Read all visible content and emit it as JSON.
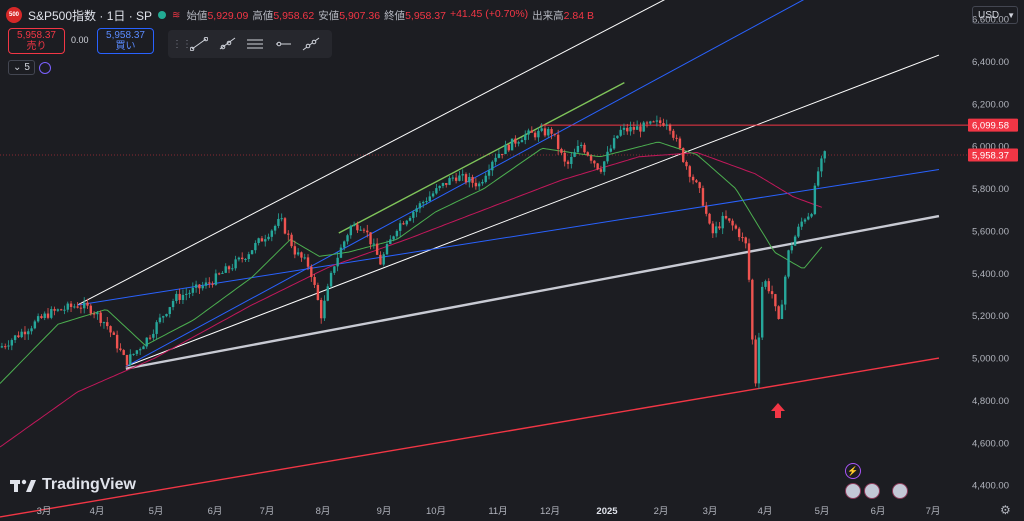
{
  "header": {
    "symbol_badge": "500",
    "title": "S&P500指数 · 1日 · SP",
    "ohlc": [
      {
        "label": "始値",
        "value": "5,929.09"
      },
      {
        "label": "高値",
        "value": "5,958.62"
      },
      {
        "label": "安値",
        "value": "5,907.36"
      },
      {
        "label": "終値",
        "value": "5,958.37"
      },
      {
        "label": "",
        "value": "+41.45 (+0.70%)"
      },
      {
        "label": "出来高",
        "value": "2.84 B"
      }
    ]
  },
  "trade": {
    "sell_price": "5,958.37",
    "sell_label": "売り",
    "spread": "0.00",
    "buy_price": "5,958.37",
    "buy_label": "買い"
  },
  "indicator": {
    "label": "5"
  },
  "currency": "USD",
  "drawing_tools": [
    "trend-line-tool",
    "ray-tool",
    "parallel-channel-tool",
    "horizontal-ray-tool",
    "extended-line-tool"
  ],
  "logo_text": "TradingView",
  "colors": {
    "up": "#26a69a",
    "down": "#ef5350",
    "resistance": "#f23645",
    "channel": "#ffffff",
    "blue_line": "#2962ff",
    "green_line": "#7fc45a",
    "ma_short": "#4caf50",
    "ma_long": "#c2185b"
  },
  "chart_data": {
    "type": "candlestick",
    "title": "S&P500指数 · 1日 · SP",
    "y_axis_ticks": [
      "6,600.00",
      "6,400.00",
      "6,200.00",
      "6,000.00",
      "5,800.00",
      "5,600.00",
      "5,400.00",
      "5,200.00",
      "5,000.00",
      "4,800.00",
      "4,600.00",
      "4,400.00"
    ],
    "x_axis_ticks": [
      "3月",
      "4月",
      "5月",
      "6月",
      "7月",
      "8月",
      "9月",
      "10月",
      "11月",
      "12月",
      "2025",
      "2月",
      "3月",
      "4月",
      "5月",
      "6月",
      "7月"
    ],
    "ylim": [
      4330,
      6690
    ],
    "price_labels": [
      {
        "value": 6099.58,
        "text": "6,099.58"
      },
      {
        "value": 5958.37,
        "text": "5,958.37"
      }
    ],
    "series": [
      {
        "name": "price",
        "anchors": [
          {
            "t": 0,
            "v": 5050
          },
          {
            "t": 50,
            "v": 5210
          },
          {
            "t": 80,
            "v": 5250
          },
          {
            "t": 95,
            "v": 5230
          },
          {
            "t": 110,
            "v": 5160
          },
          {
            "t": 130,
            "v": 4980
          },
          {
            "t": 150,
            "v": 5080
          },
          {
            "t": 180,
            "v": 5280
          },
          {
            "t": 215,
            "v": 5350
          },
          {
            "t": 250,
            "v": 5470
          },
          {
            "t": 290,
            "v": 5650
          },
          {
            "t": 305,
            "v": 5500
          },
          {
            "t": 320,
            "v": 5430
          },
          {
            "t": 332,
            "v": 5200
          },
          {
            "t": 345,
            "v": 5440
          },
          {
            "t": 362,
            "v": 5620
          },
          {
            "t": 375,
            "v": 5630
          },
          {
            "t": 393,
            "v": 5450
          },
          {
            "t": 410,
            "v": 5620
          },
          {
            "t": 440,
            "v": 5750
          },
          {
            "t": 470,
            "v": 5860
          },
          {
            "t": 495,
            "v": 5820
          },
          {
            "t": 510,
            "v": 5950
          },
          {
            "t": 540,
            "v": 6050
          },
          {
            "t": 570,
            "v": 6070
          },
          {
            "t": 585,
            "v": 5900
          },
          {
            "t": 600,
            "v": 6010
          },
          {
            "t": 620,
            "v": 5890
          },
          {
            "t": 640,
            "v": 6070
          },
          {
            "t": 665,
            "v": 6090
          },
          {
            "t": 690,
            "v": 6120
          },
          {
            "t": 705,
            "v": 5950
          },
          {
            "t": 725,
            "v": 5760
          },
          {
            "t": 735,
            "v": 5580
          },
          {
            "t": 748,
            "v": 5660
          },
          {
            "t": 762,
            "v": 5600
          },
          {
            "t": 772,
            "v": 5520
          },
          {
            "t": 780,
            "v": 4850
          },
          {
            "t": 788,
            "v": 5380
          },
          {
            "t": 798,
            "v": 5300
          },
          {
            "t": 804,
            "v": 5150
          },
          {
            "t": 815,
            "v": 5510
          },
          {
            "t": 830,
            "v": 5660
          },
          {
            "t": 838,
            "v": 5690
          },
          {
            "t": 845,
            "v": 5880
          },
          {
            "t": 852,
            "v": 5958
          }
        ]
      },
      {
        "name": "MA-short",
        "anchors": [
          {
            "t": 0,
            "v": 4880
          },
          {
            "t": 60,
            "v": 5160
          },
          {
            "t": 110,
            "v": 5230
          },
          {
            "t": 150,
            "v": 5060
          },
          {
            "t": 200,
            "v": 5180
          },
          {
            "t": 260,
            "v": 5380
          },
          {
            "t": 300,
            "v": 5560
          },
          {
            "t": 330,
            "v": 5480
          },
          {
            "t": 360,
            "v": 5500
          },
          {
            "t": 410,
            "v": 5560
          },
          {
            "t": 450,
            "v": 5690
          },
          {
            "t": 500,
            "v": 5800
          },
          {
            "t": 560,
            "v": 5990
          },
          {
            "t": 620,
            "v": 5950
          },
          {
            "t": 680,
            "v": 6020
          },
          {
            "t": 720,
            "v": 5960
          },
          {
            "t": 760,
            "v": 5800
          },
          {
            "t": 800,
            "v": 5500
          },
          {
            "t": 830,
            "v": 5420
          },
          {
            "t": 850,
            "v": 5530
          }
        ]
      },
      {
        "name": "MA-long",
        "anchors": [
          {
            "t": 0,
            "v": 4580
          },
          {
            "t": 80,
            "v": 4840
          },
          {
            "t": 160,
            "v": 5000
          },
          {
            "t": 260,
            "v": 5250
          },
          {
            "t": 340,
            "v": 5430
          },
          {
            "t": 420,
            "v": 5560
          },
          {
            "t": 500,
            "v": 5700
          },
          {
            "t": 580,
            "v": 5840
          },
          {
            "t": 660,
            "v": 5950
          },
          {
            "t": 720,
            "v": 5970
          },
          {
            "t": 780,
            "v": 5870
          },
          {
            "t": 820,
            "v": 5760
          },
          {
            "t": 850,
            "v": 5710
          }
        ]
      }
    ],
    "annotations": {
      "resistance_level": 6099.58,
      "channel_upper": [
        {
          "t": 80,
          "v": 5250
        },
        {
          "t": 850,
          "v": 7080
        }
      ],
      "channel_mid": [
        {
          "t": 130,
          "v": 4960
        },
        {
          "t": 970,
          "v": 6430
        }
      ],
      "support_white": [
        {
          "t": 130,
          "v": 4950
        },
        {
          "t": 970,
          "v": 5670
        }
      ],
      "support_red": [
        {
          "t": 0,
          "v": 4250
        },
        {
          "t": 970,
          "v": 5000
        }
      ],
      "blue_line_a": [
        {
          "t": 80,
          "v": 5250
        },
        {
          "t": 970,
          "v": 5890
        }
      ],
      "blue_line_b": [
        {
          "t": 130,
          "v": 4960
        },
        {
          "t": 870,
          "v": 6790
        }
      ],
      "green_line": [
        {
          "t": 350,
          "v": 5590
        },
        {
          "t": 645,
          "v": 6300
        }
      ]
    }
  }
}
